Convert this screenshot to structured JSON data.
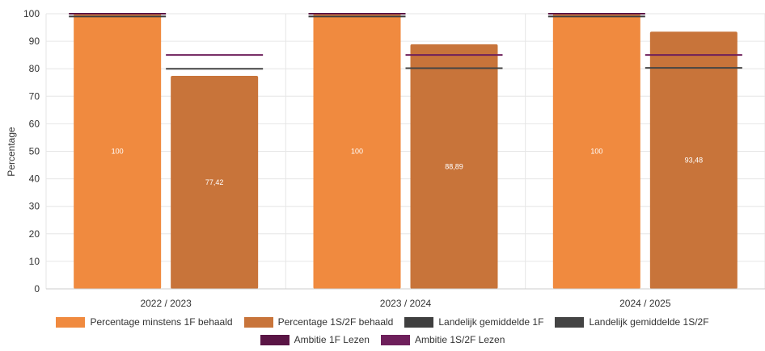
{
  "chart_data": {
    "type": "bar",
    "ylabel": "Percentage",
    "ylim": [
      0,
      100
    ],
    "yticks": [
      0,
      10,
      20,
      30,
      40,
      50,
      60,
      70,
      80,
      90,
      100
    ],
    "categories": [
      "2022 / 2023",
      "2023 / 2024",
      "2024 / 2025"
    ],
    "grid": true,
    "legend_position": "bottom",
    "series": [
      {
        "name": "Percentage minstens 1F behaald",
        "color": "#F08A3F",
        "values": [
          100,
          100,
          100
        ],
        "labels": [
          "100",
          "100",
          "100"
        ]
      },
      {
        "name": "Percentage 1S/2F behaald",
        "color": "#C8743A",
        "values": [
          77.42,
          88.89,
          93.48
        ],
        "labels": [
          "77,42",
          "88,89",
          "93,48"
        ]
      }
    ],
    "reference_lines": [
      {
        "name": "Landelijk gemiddelde 1F",
        "color": "#3F3F3F",
        "bar_series": 0,
        "values": [
          99,
          99,
          99
        ]
      },
      {
        "name": "Landelijk gemiddelde 1S/2F",
        "color": "#444444",
        "bar_series": 1,
        "values": [
          80,
          80.2,
          80.3
        ]
      },
      {
        "name": "Ambitie 1F Lezen",
        "color": "#5A1545",
        "bar_series": 0,
        "values": [
          100,
          100,
          100
        ]
      },
      {
        "name": "Ambitie 1S/2F Lezen",
        "color": "#6E1F5B",
        "bar_series": 1,
        "values": [
          85,
          85,
          85
        ]
      }
    ]
  }
}
